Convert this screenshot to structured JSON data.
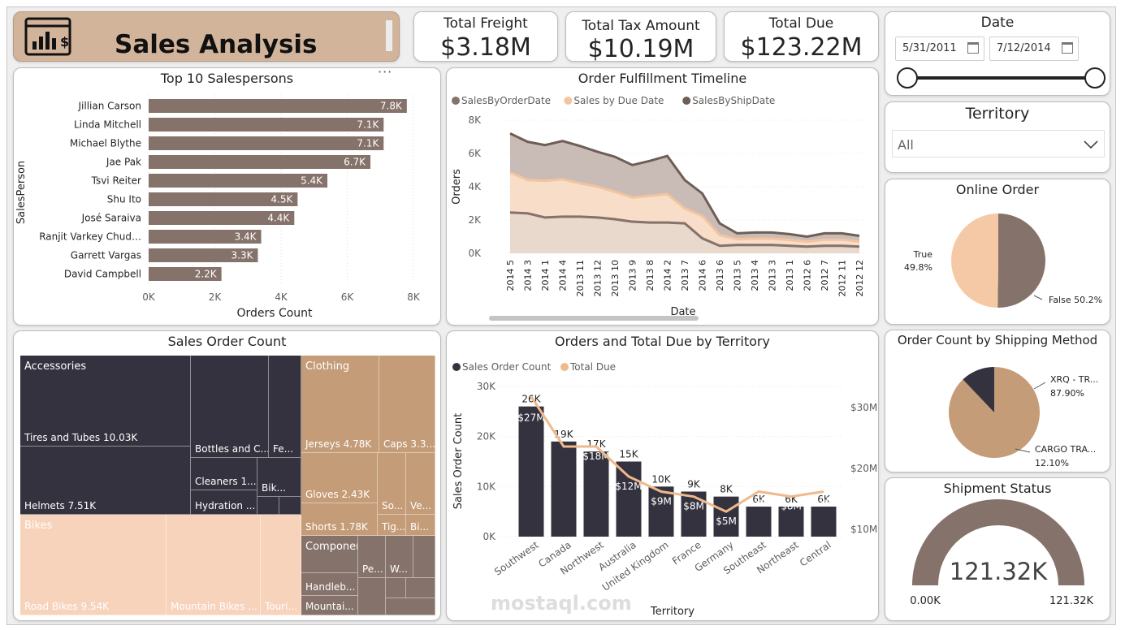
{
  "header": {
    "title": "Sales Analysis"
  },
  "kpis": {
    "freight": {
      "label": "Total Freight",
      "value": "$3.18M"
    },
    "tax": {
      "label": "Total Tax Amount",
      "value": "$10.19M"
    },
    "due": {
      "label": "Total Due",
      "value": "$123.22M"
    }
  },
  "date_slicer": {
    "title": "Date",
    "start": "5/31/2011",
    "end": "7/12/2014"
  },
  "territory_slicer": {
    "title": "Territory",
    "value": "All"
  },
  "colors": {
    "dark": "#85726a",
    "navy": "#34323e",
    "tan": "#c49c78",
    "peach": "#f5c9a5",
    "light_peach": "#f7d3bb",
    "header_bg": "#d2b49b"
  },
  "top_salespersons": {
    "title": "Top 10 Salespersons",
    "xlabel": "Orders Count",
    "ylabel": "SalesPerson",
    "ticks": [
      "0K",
      "2K",
      "4K",
      "6K",
      "8K"
    ],
    "chart_data": {
      "type": "bar",
      "categories": [
        "Jillian Carson",
        "Linda Mitchell",
        "Michael Blythe",
        "Jae Pak",
        "Tsvi Reiter",
        "Shu Ito",
        "José Saraiva",
        "Ranjit Varkey Chud…",
        "Garrett Vargas",
        "David Campbell"
      ],
      "values": [
        7.8,
        7.1,
        7.1,
        6.7,
        5.4,
        4.5,
        4.4,
        3.4,
        3.3,
        2.2
      ],
      "labels": [
        "7.8K",
        "7.1K",
        "7.1K",
        "6.7K",
        "5.4K",
        "4.5K",
        "4.4K",
        "3.4K",
        "3.3K",
        "2.2K"
      ],
      "xlim": [
        0,
        8
      ]
    }
  },
  "fulfillment": {
    "title": "Order Fulfillment Timeline",
    "legend": [
      "SalesByOrderDate",
      "Sales by Due Date",
      "SalesByShipDate"
    ],
    "xlabel": "Date",
    "ylabel": "Orders",
    "yticks": [
      "8K",
      "6K",
      "4K",
      "2K",
      "0K"
    ],
    "chart_data": {
      "type": "area",
      "categories": [
        "2014 5",
        "2014 3",
        "2014 1",
        "2014 4",
        "2013 11",
        "2013 12",
        "2013 10",
        "2013 9",
        "2013 8",
        "2014 2",
        "2013 7",
        "2014 6",
        "2013 6",
        "2013 5",
        "2013 4",
        "2013 3",
        "2013 1",
        "2012 6",
        "2012 7",
        "2012 11",
        "2012 12"
      ],
      "series": [
        {
          "name": "SalesByShipDate",
          "values": [
            7200,
            6700,
            6500,
            6750,
            6450,
            6100,
            5800,
            5300,
            5550,
            5850,
            4400,
            3600,
            1800,
            1200,
            1250,
            1250,
            1150,
            1000,
            1200,
            1200,
            1050
          ]
        },
        {
          "name": "Sales by Due Date",
          "values": [
            4850,
            4400,
            4350,
            4450,
            4200,
            4000,
            3700,
            3350,
            3450,
            3550,
            2700,
            2250,
            1100,
            850,
            880,
            880,
            800,
            700,
            820,
            820,
            700
          ]
        },
        {
          "name": "SalesByOrderDate",
          "values": [
            2450,
            2400,
            2150,
            2200,
            2200,
            2150,
            2050,
            1900,
            1850,
            1850,
            1800,
            900,
            450,
            500,
            500,
            500,
            450,
            400,
            450,
            450,
            400
          ]
        }
      ],
      "ylim": [
        0,
        8000
      ]
    }
  },
  "online_order": {
    "title": "Online Order",
    "chart_data": {
      "type": "pie",
      "slices": [
        {
          "name": "True",
          "value": 49.8,
          "label": "49.8%"
        },
        {
          "name": "False",
          "value": 50.2,
          "label": "False 50.2%"
        }
      ]
    }
  },
  "treemap": {
    "title": "Sales Order Count",
    "groups": [
      {
        "name": "Accessories",
        "items": [
          "Tires and Tubes 10.03K",
          "Helmets 7.51K",
          "Bottles and C...",
          "Fe...",
          "Cleaners 1....",
          "Bik...",
          "Hydration ..."
        ]
      },
      {
        "name": "Clothing",
        "items": [
          "Jerseys 4.78K",
          "Caps 3.3...",
          "Gloves 2.43K",
          "So...",
          "Ve...",
          "Shorts 1.78K",
          "Tig...",
          "Bi..."
        ]
      },
      {
        "name": "Bikes",
        "items": [
          "Road Bikes 9.54K",
          "Mountain Bikes ...",
          "Touri..."
        ]
      },
      {
        "name": "Components",
        "items": [
          "Pe...",
          "W...",
          "Handleb...",
          "Mountai..."
        ]
      }
    ]
  },
  "territory": {
    "title": "Orders and Total Due by Territory",
    "legend": [
      "Sales Order Count",
      "Total Due"
    ],
    "xlabel": "Territory",
    "ylabel": "Sales Order Count",
    "yticks_left": [
      "30K",
      "20K",
      "10K",
      "0K"
    ],
    "yticks_right": [
      "$30M",
      "$20M",
      "$10M"
    ],
    "chart_data": {
      "type": "bar",
      "categories": [
        "Southwest",
        "Canada",
        "Northwest",
        "Australia",
        "United Kingdom",
        "France",
        "Germany",
        "Southeast",
        "Northeast",
        "Central"
      ],
      "series": [
        {
          "name": "Sales Order Count",
          "values": [
            26,
            19,
            17,
            15,
            10,
            9,
            8,
            6,
            6,
            6
          ],
          "labels": [
            "26K",
            "19K",
            "17K",
            "15K",
            "10K",
            "9K",
            "8K",
            "6K",
            "6K",
            "6K"
          ]
        },
        {
          "name": "Total Due",
          "values": [
            27,
            18,
            18,
            12,
            9,
            8,
            5,
            9,
            8,
            9
          ],
          "labels": [
            "$27M",
            "",
            "$18M",
            "$12M",
            "$9M",
            "$8M",
            "$5M",
            "$9M",
            "$8M",
            "$9M"
          ]
        }
      ],
      "ylim": [
        0,
        30
      ]
    }
  },
  "shipping": {
    "title": "Order Count by Shipping Method",
    "chart_data": {
      "type": "pie",
      "slices": [
        {
          "name": "XRQ - TR...",
          "value": 87.9,
          "label": "87.90%"
        },
        {
          "name": "CARGO TRA...",
          "value": 12.1,
          "label": "12.10%"
        }
      ]
    }
  },
  "shipment_status": {
    "title": "Shipment Status",
    "value": "121.32K",
    "min": "0.00K",
    "max": "121.32K",
    "fill_fraction": 1.0
  },
  "watermark": {
    "brand": "mostaql.com"
  }
}
